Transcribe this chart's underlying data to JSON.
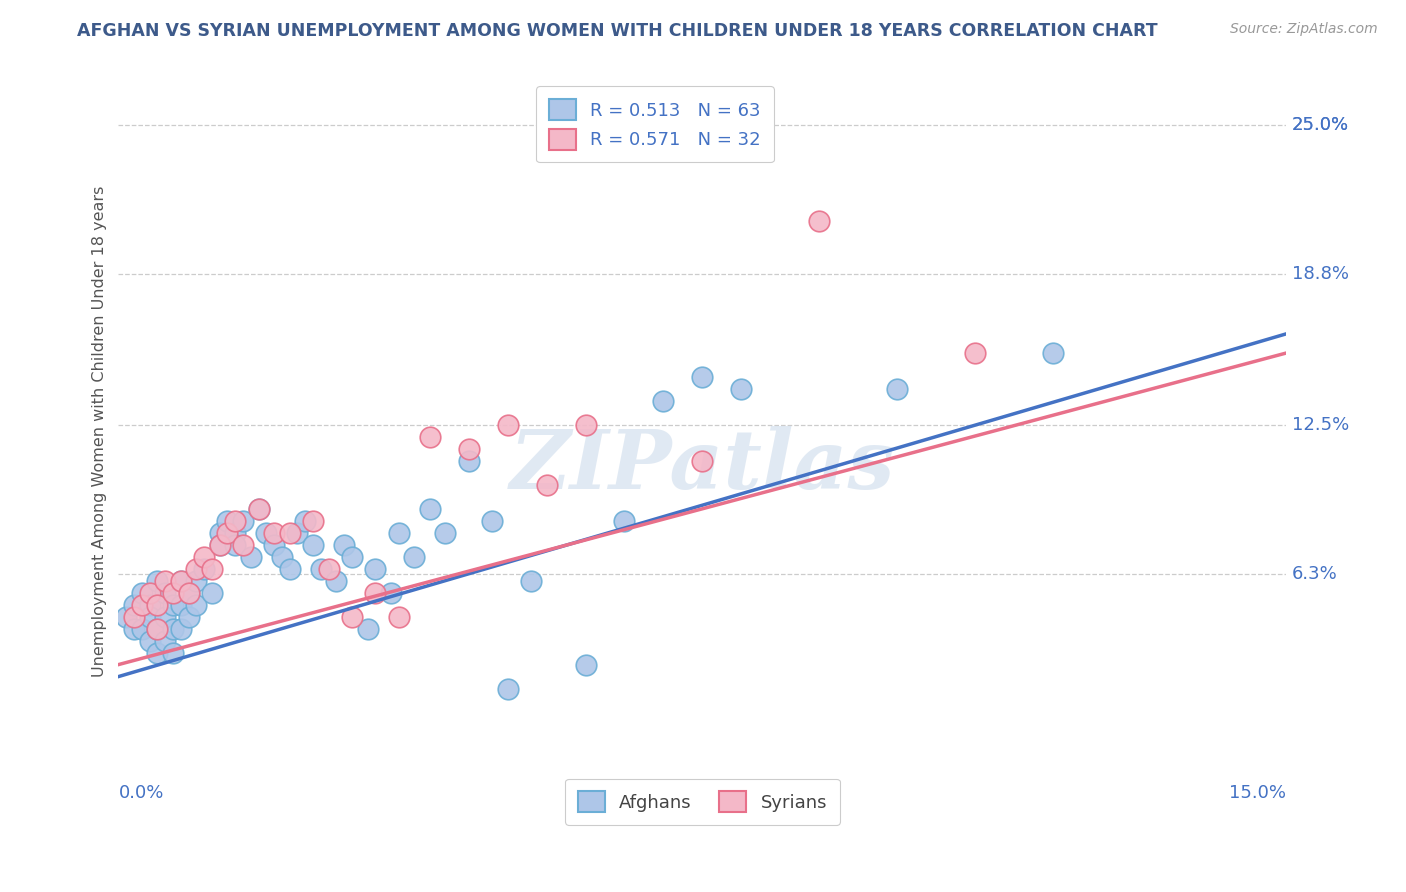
{
  "title": "AFGHAN VS SYRIAN UNEMPLOYMENT AMONG WOMEN WITH CHILDREN UNDER 18 YEARS CORRELATION CHART",
  "source": "Source: ZipAtlas.com",
  "ylabel": "Unemployment Among Women with Children Under 18 years",
  "xlim": [
    0.0,
    0.15
  ],
  "ylim": [
    -0.025,
    0.27
  ],
  "yticks": [
    0.063,
    0.125,
    0.188,
    0.25
  ],
  "ytick_labels": [
    "6.3%",
    "12.5%",
    "18.8%",
    "25.0%"
  ],
  "afghan_color": "#aec6e8",
  "afghan_edge": "#6baed6",
  "syrian_color": "#f4b8c8",
  "syrian_edge": "#e8708a",
  "afghan_line_color": "#4472c4",
  "syrian_line_color": "#e8708a",
  "legend_text_color": "#4472c4",
  "watermark": "ZIPatlas",
  "R_afghan": 0.513,
  "N_afghan": 63,
  "R_syrian": 0.571,
  "N_syrian": 32,
  "af_line_x0": 0.0,
  "af_line_y0": 0.02,
  "af_line_x1": 0.15,
  "af_line_y1": 0.163,
  "sy_line_x0": 0.0,
  "sy_line_y0": 0.025,
  "sy_line_x1": 0.15,
  "sy_line_y1": 0.155,
  "afghan_pts": [
    [
      0.001,
      0.045
    ],
    [
      0.002,
      0.05
    ],
    [
      0.002,
      0.04
    ],
    [
      0.003,
      0.055
    ],
    [
      0.003,
      0.04
    ],
    [
      0.004,
      0.05
    ],
    [
      0.004,
      0.045
    ],
    [
      0.004,
      0.035
    ],
    [
      0.005,
      0.06
    ],
    [
      0.005,
      0.04
    ],
    [
      0.005,
      0.03
    ],
    [
      0.006,
      0.055
    ],
    [
      0.006,
      0.045
    ],
    [
      0.006,
      0.035
    ],
    [
      0.007,
      0.05
    ],
    [
      0.007,
      0.04
    ],
    [
      0.007,
      0.03
    ],
    [
      0.008,
      0.06
    ],
    [
      0.008,
      0.05
    ],
    [
      0.008,
      0.04
    ],
    [
      0.009,
      0.055
    ],
    [
      0.009,
      0.045
    ],
    [
      0.01,
      0.06
    ],
    [
      0.01,
      0.05
    ],
    [
      0.011,
      0.065
    ],
    [
      0.012,
      0.055
    ],
    [
      0.013,
      0.08
    ],
    [
      0.013,
      0.075
    ],
    [
      0.014,
      0.085
    ],
    [
      0.015,
      0.08
    ],
    [
      0.015,
      0.075
    ],
    [
      0.016,
      0.085
    ],
    [
      0.017,
      0.07
    ],
    [
      0.018,
      0.09
    ],
    [
      0.019,
      0.08
    ],
    [
      0.02,
      0.075
    ],
    [
      0.021,
      0.07
    ],
    [
      0.022,
      0.065
    ],
    [
      0.023,
      0.08
    ],
    [
      0.024,
      0.085
    ],
    [
      0.025,
      0.075
    ],
    [
      0.026,
      0.065
    ],
    [
      0.028,
      0.06
    ],
    [
      0.029,
      0.075
    ],
    [
      0.03,
      0.07
    ],
    [
      0.032,
      0.04
    ],
    [
      0.033,
      0.065
    ],
    [
      0.035,
      0.055
    ],
    [
      0.036,
      0.08
    ],
    [
      0.038,
      0.07
    ],
    [
      0.04,
      0.09
    ],
    [
      0.042,
      0.08
    ],
    [
      0.045,
      0.11
    ],
    [
      0.048,
      0.085
    ],
    [
      0.05,
      0.015
    ],
    [
      0.053,
      0.06
    ],
    [
      0.06,
      0.025
    ],
    [
      0.065,
      0.085
    ],
    [
      0.07,
      0.135
    ],
    [
      0.075,
      0.145
    ],
    [
      0.08,
      0.14
    ],
    [
      0.1,
      0.14
    ],
    [
      0.12,
      0.155
    ]
  ],
  "syrian_pts": [
    [
      0.002,
      0.045
    ],
    [
      0.003,
      0.05
    ],
    [
      0.004,
      0.055
    ],
    [
      0.005,
      0.05
    ],
    [
      0.005,
      0.04
    ],
    [
      0.006,
      0.06
    ],
    [
      0.007,
      0.055
    ],
    [
      0.008,
      0.06
    ],
    [
      0.009,
      0.055
    ],
    [
      0.01,
      0.065
    ],
    [
      0.011,
      0.07
    ],
    [
      0.012,
      0.065
    ],
    [
      0.013,
      0.075
    ],
    [
      0.014,
      0.08
    ],
    [
      0.015,
      0.085
    ],
    [
      0.016,
      0.075
    ],
    [
      0.018,
      0.09
    ],
    [
      0.02,
      0.08
    ],
    [
      0.022,
      0.08
    ],
    [
      0.025,
      0.085
    ],
    [
      0.027,
      0.065
    ],
    [
      0.03,
      0.045
    ],
    [
      0.033,
      0.055
    ],
    [
      0.036,
      0.045
    ],
    [
      0.04,
      0.12
    ],
    [
      0.045,
      0.115
    ],
    [
      0.05,
      0.125
    ],
    [
      0.055,
      0.1
    ],
    [
      0.06,
      0.125
    ],
    [
      0.075,
      0.11
    ],
    [
      0.09,
      0.21
    ],
    [
      0.11,
      0.155
    ]
  ]
}
